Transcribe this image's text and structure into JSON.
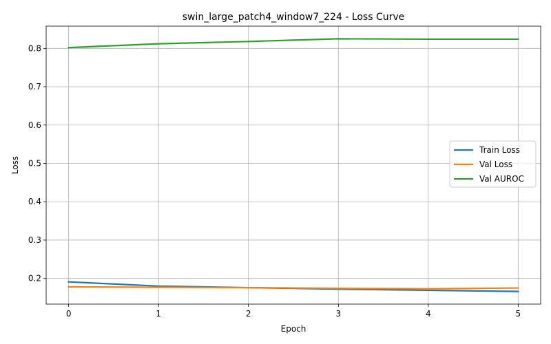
{
  "chart_data": {
    "type": "line",
    "title": "swin_large_patch4_window7_224 - Loss Curve",
    "xlabel": "Epoch",
    "ylabel": "Loss",
    "x": [
      0,
      1,
      2,
      3,
      4,
      5
    ],
    "xticks": [
      0,
      1,
      2,
      3,
      4,
      5
    ],
    "yticks": [
      0.2,
      0.3,
      0.4,
      0.5,
      0.6,
      0.7,
      0.8
    ],
    "xlim": [
      -0.25,
      5.25
    ],
    "ylim": [
      0.133,
      0.858
    ],
    "grid": true,
    "legend_position": "center-right",
    "series": [
      {
        "name": "Train Loss",
        "color": "#1f77b4",
        "values": [
          0.191,
          0.18,
          0.176,
          0.172,
          0.169,
          0.166
        ]
      },
      {
        "name": "Val Loss",
        "color": "#ff7f0e",
        "values": [
          0.178,
          0.177,
          0.176,
          0.174,
          0.173,
          0.175
        ]
      },
      {
        "name": "Val AUROC",
        "color": "#2ca02c",
        "values": [
          0.802,
          0.812,
          0.818,
          0.825,
          0.824,
          0.824
        ]
      }
    ]
  }
}
